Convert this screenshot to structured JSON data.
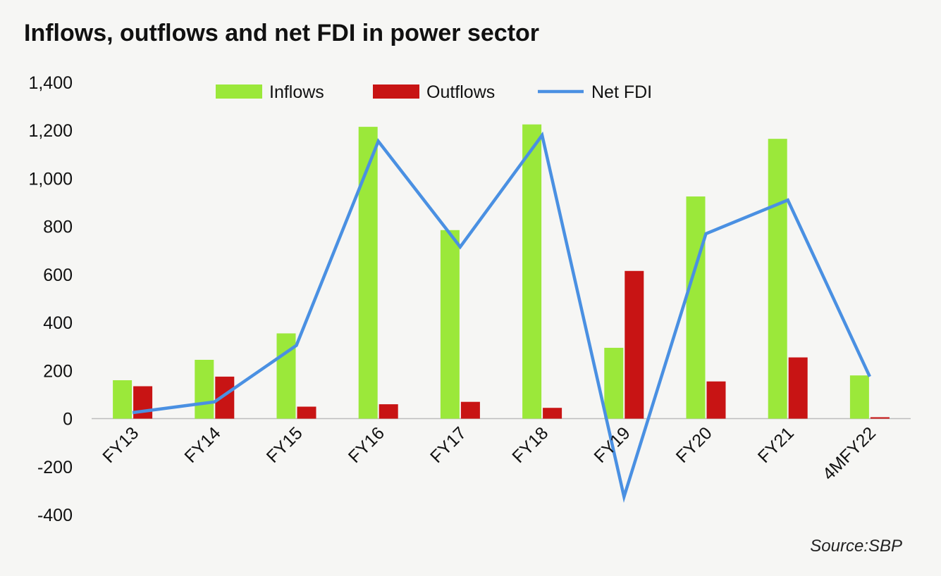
{
  "chart_data": {
    "type": "bar",
    "title": "Inflows, outflows and net FDI in power sector",
    "xlabel": "",
    "ylabel": "",
    "categories": [
      "FY13",
      "FY14",
      "FY15",
      "FY16",
      "FY17",
      "FY18",
      "FY19",
      "FY20",
      "FY21",
      "4MFY22"
    ],
    "ylim": [
      -400,
      1400
    ],
    "yticks": [
      1400,
      1200,
      1000,
      800,
      600,
      400,
      200,
      0,
      -200,
      -400
    ],
    "ytick_labels": [
      "1,400",
      "1,200",
      "1,000",
      "800",
      "600",
      "400",
      "200",
      "0",
      "-200",
      "-400"
    ],
    "grid": false,
    "legend_position": "top",
    "series": [
      {
        "name": "Inflows",
        "type": "bar",
        "color": "#9be83a",
        "values": [
          160,
          245,
          355,
          1215,
          785,
          1225,
          295,
          925,
          1165,
          180
        ]
      },
      {
        "name": "Outflows",
        "type": "bar",
        "color": "#c81414",
        "values": [
          135,
          175,
          50,
          60,
          70,
          45,
          615,
          155,
          255,
          6
        ]
      },
      {
        "name": "Net FDI",
        "type": "line",
        "color": "#4a90e2",
        "values": [
          25,
          70,
          305,
          1155,
          715,
          1180,
          -325,
          770,
          910,
          175
        ]
      }
    ]
  },
  "source": "Source:SBP"
}
